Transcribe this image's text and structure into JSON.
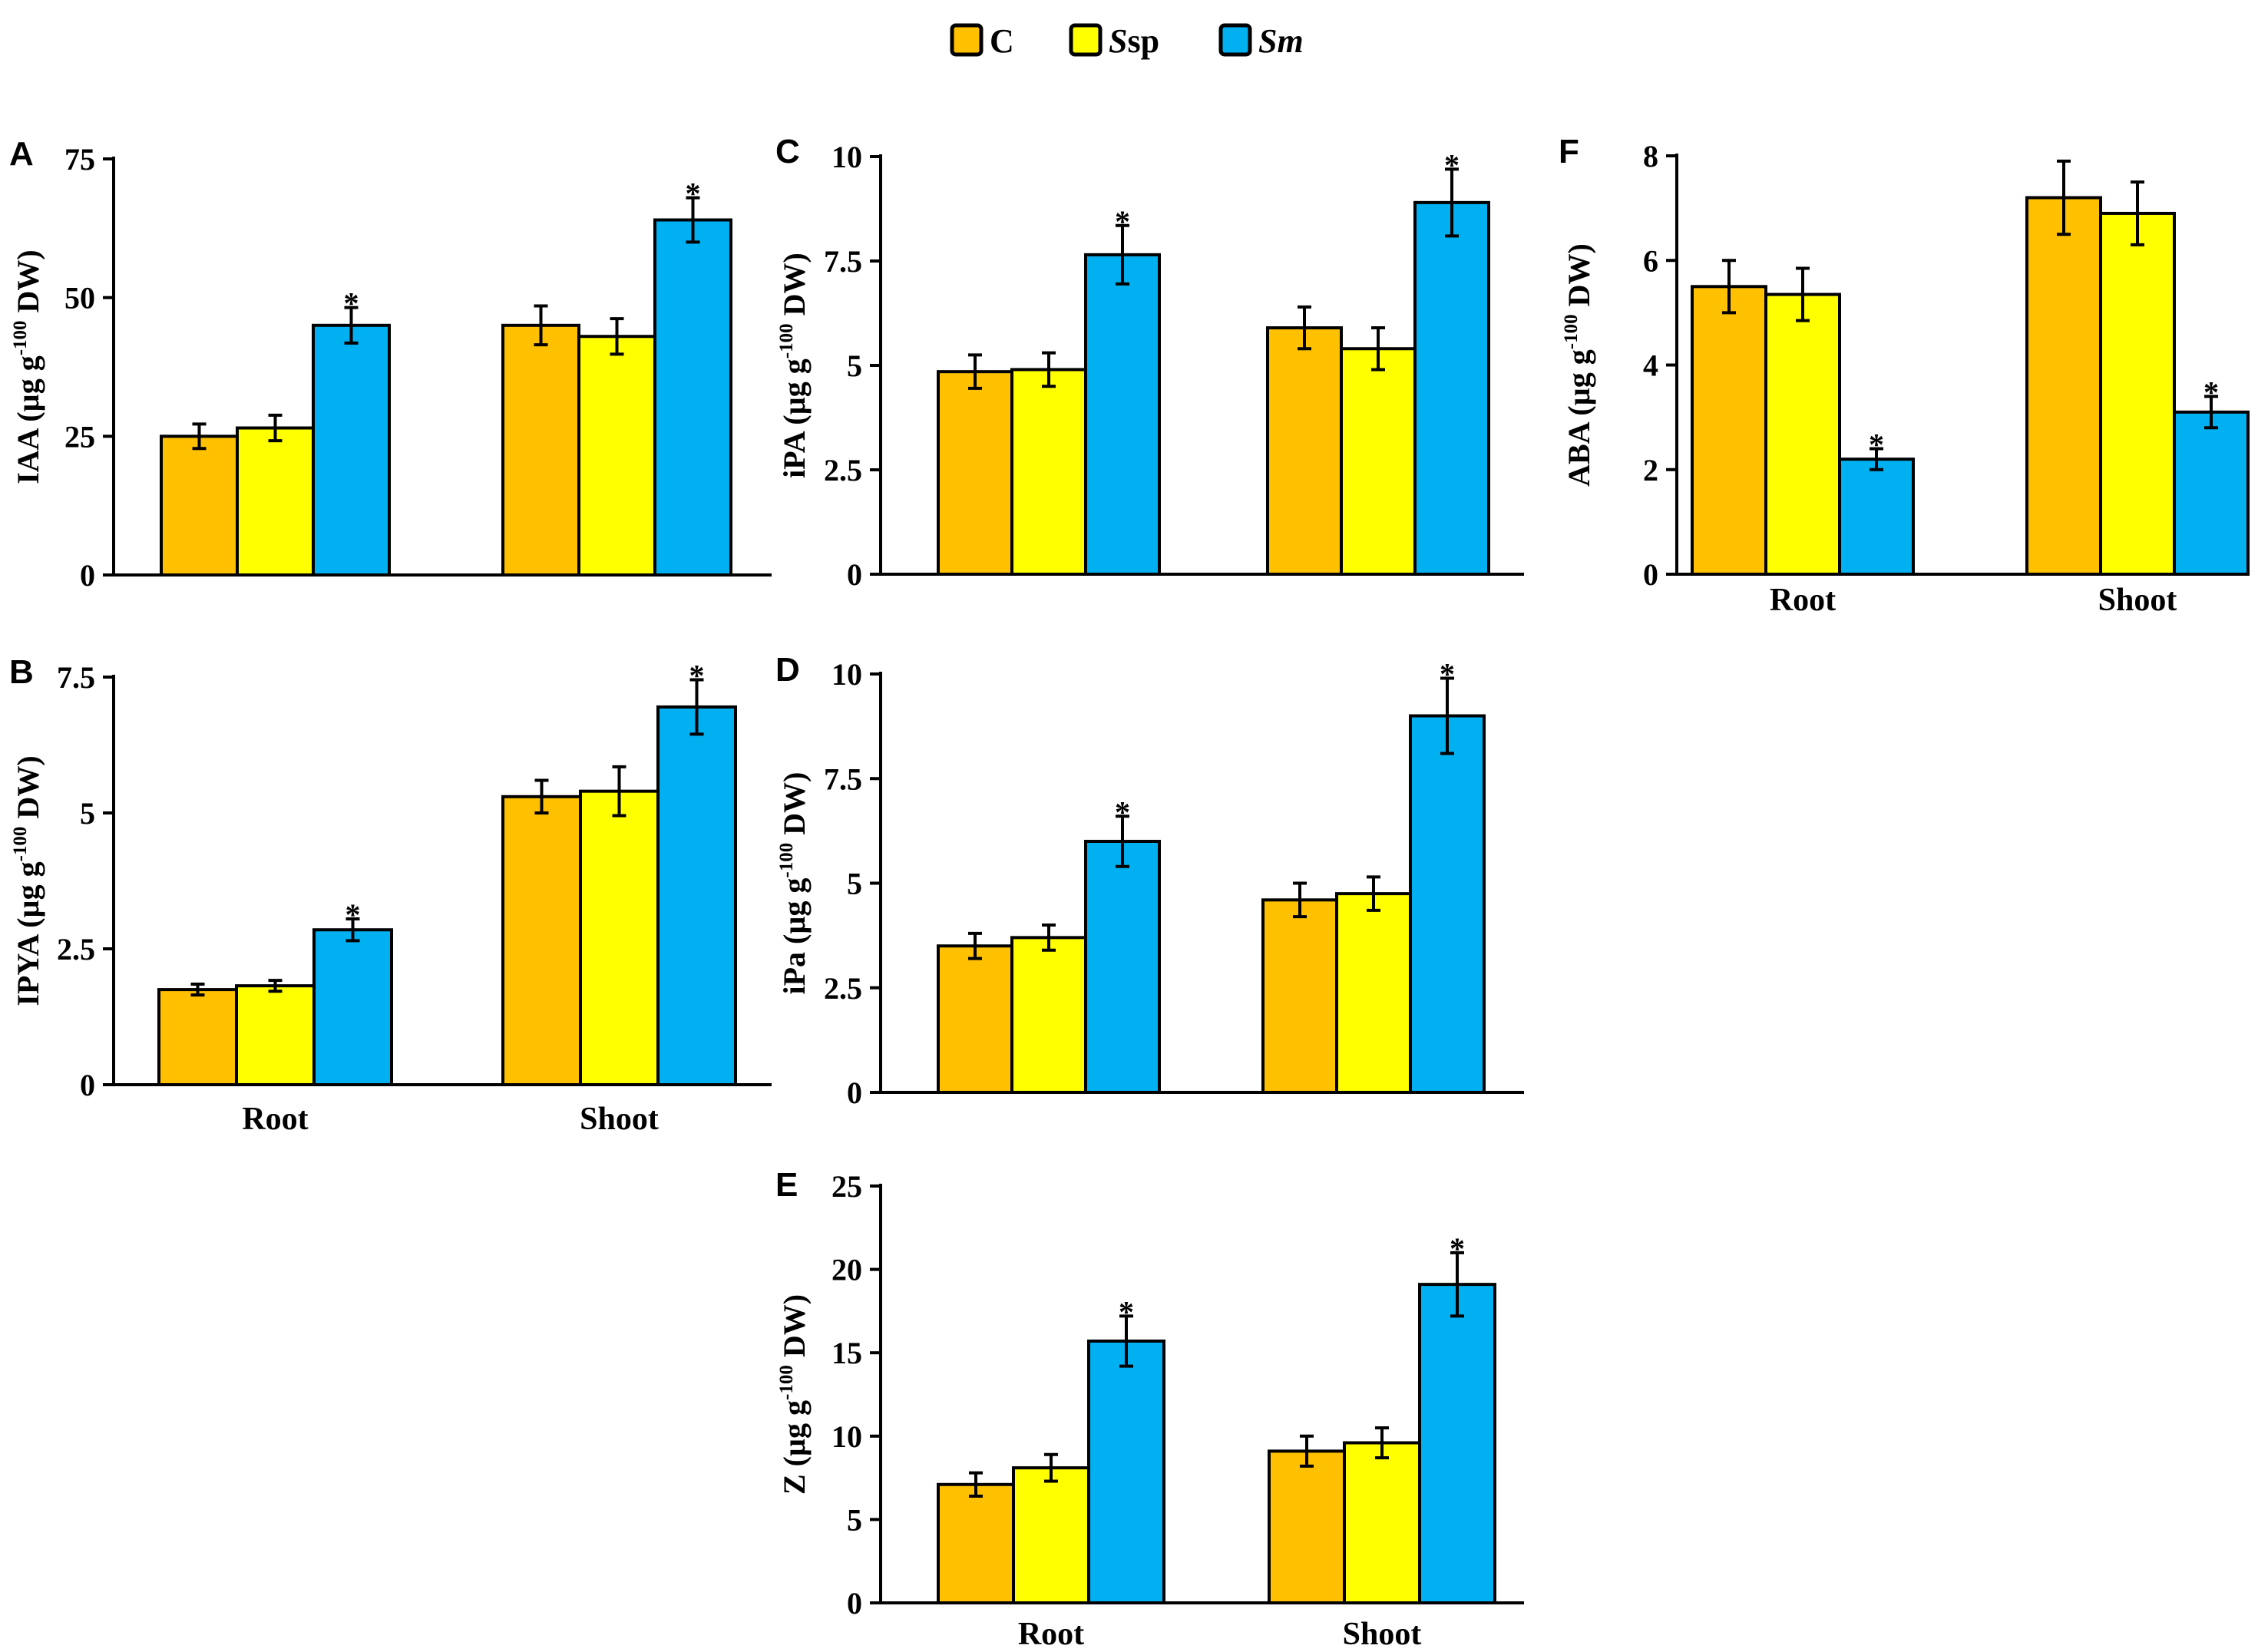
{
  "legend": [
    {
      "key": "C",
      "label_a": "C",
      "label_b": "",
      "italic_a": false,
      "color": "#FFC000"
    },
    {
      "key": "Ssp",
      "label_a": "S",
      "label_b": "sp",
      "italic_a": true,
      "color": "#FFFF00"
    },
    {
      "key": "Sm",
      "label_a": "Sm",
      "label_b": "",
      "italic_a": true,
      "color": "#00B0F0"
    }
  ],
  "colors": {
    "C": "#FFC000",
    "Ssp": "#FFFF00",
    "Sm": "#00B0F0",
    "axis": "#000000",
    "error_bar": "#000000"
  },
  "chart_data": [
    {
      "id": "A",
      "panel_label": "A",
      "type": "bar",
      "ylabel_prefix": "IAA (µg g",
      "ylabel_sup": "-100",
      "ylabel_suffix": " DW)",
      "categories": [
        "Root",
        "Shoot"
      ],
      "show_categories": false,
      "ylim": [
        0,
        75
      ],
      "yticks": [
        0,
        25,
        50,
        75
      ],
      "ytick_labels": [
        "0",
        "25",
        "50",
        "75"
      ],
      "series": [
        {
          "name": "C",
          "values": [
            25,
            45
          ],
          "errors": [
            2.2,
            3.5
          ]
        },
        {
          "name": "Ssp",
          "values": [
            26.5,
            43
          ],
          "errors": [
            2.3,
            3.2
          ]
        },
        {
          "name": "Sm",
          "values": [
            45,
            64
          ],
          "errors": [
            3.2,
            4.0
          ]
        }
      ],
      "significance": [
        {
          "series": "Sm",
          "category": "Root",
          "mark": "*"
        },
        {
          "series": "Sm",
          "category": "Shoot",
          "mark": "*"
        }
      ]
    },
    {
      "id": "B",
      "panel_label": "B",
      "type": "bar",
      "ylabel_prefix": "IPYA (µg g",
      "ylabel_sup": "-100",
      "ylabel_suffix": " DW)",
      "categories": [
        "Root",
        "Shoot"
      ],
      "show_categories": true,
      "ylim": [
        0,
        7.5
      ],
      "yticks": [
        0,
        2.5,
        5,
        7.5
      ],
      "ytick_labels": [
        "0",
        "2.5",
        "5",
        "7.5"
      ],
      "series": [
        {
          "name": "C",
          "values": [
            1.75,
            5.3
          ],
          "errors": [
            0.1,
            0.3
          ]
        },
        {
          "name": "Ssp",
          "values": [
            1.82,
            5.4
          ],
          "errors": [
            0.1,
            0.45
          ]
        },
        {
          "name": "Sm",
          "values": [
            2.85,
            6.95
          ],
          "errors": [
            0.2,
            0.5
          ]
        }
      ],
      "significance": [
        {
          "series": "Sm",
          "category": "Root",
          "mark": "*"
        },
        {
          "series": "Sm",
          "category": "Shoot",
          "mark": "*"
        }
      ]
    },
    {
      "id": "C",
      "panel_label": "C",
      "type": "bar",
      "ylabel_prefix": "iPA (µg g",
      "ylabel_sup": "-100",
      "ylabel_suffix": " DW)",
      "categories": [
        "Root",
        "Shoot"
      ],
      "show_categories": false,
      "ylim": [
        0,
        10
      ],
      "yticks": [
        0,
        2.5,
        5,
        7.5,
        10
      ],
      "ytick_labels": [
        "0",
        "2.5",
        "5",
        "7.5",
        "10"
      ],
      "series": [
        {
          "name": "C",
          "values": [
            4.85,
            5.9
          ],
          "errors": [
            0.4,
            0.5
          ]
        },
        {
          "name": "Ssp",
          "values": [
            4.9,
            5.4
          ],
          "errors": [
            0.4,
            0.5
          ]
        },
        {
          "name": "Sm",
          "values": [
            7.65,
            8.9
          ],
          "errors": [
            0.7,
            0.8
          ]
        }
      ],
      "significance": [
        {
          "series": "Sm",
          "category": "Root",
          "mark": "*"
        },
        {
          "series": "Sm",
          "category": "Shoot",
          "mark": "*"
        }
      ]
    },
    {
      "id": "D",
      "panel_label": "D",
      "type": "bar",
      "ylabel_prefix": "iPa (µg g",
      "ylabel_sup": "-100",
      "ylabel_suffix": " DW)",
      "categories": [
        "Root",
        "Shoot"
      ],
      "show_categories": false,
      "ylim": [
        0,
        10
      ],
      "yticks": [
        0,
        2.5,
        5,
        7.5,
        10
      ],
      "ytick_labels": [
        "0",
        "2.5",
        "5",
        "7.5",
        "10"
      ],
      "series": [
        {
          "name": "C",
          "values": [
            3.5,
            4.6
          ],
          "errors": [
            0.3,
            0.4
          ]
        },
        {
          "name": "Ssp",
          "values": [
            3.7,
            4.75
          ],
          "errors": [
            0.3,
            0.4
          ]
        },
        {
          "name": "Sm",
          "values": [
            6.0,
            9.0
          ],
          "errors": [
            0.6,
            0.9
          ]
        }
      ],
      "significance": [
        {
          "series": "Sm",
          "category": "Root",
          "mark": "*"
        },
        {
          "series": "Sm",
          "category": "Shoot",
          "mark": "*"
        }
      ]
    },
    {
      "id": "E",
      "panel_label": "E",
      "type": "bar",
      "ylabel_prefix": "Z (µg g",
      "ylabel_sup": "-100",
      "ylabel_suffix": " DW)",
      "categories": [
        "Root",
        "Shoot"
      ],
      "show_categories": true,
      "ylim": [
        0,
        25
      ],
      "yticks": [
        0,
        5,
        10,
        15,
        20,
        25
      ],
      "ytick_labels": [
        "0",
        "5",
        "10",
        "15",
        "20",
        "25"
      ],
      "series": [
        {
          "name": "C",
          "values": [
            7.1,
            9.1
          ],
          "errors": [
            0.7,
            0.9
          ]
        },
        {
          "name": "Ssp",
          "values": [
            8.1,
            9.6
          ],
          "errors": [
            0.8,
            0.9
          ]
        },
        {
          "name": "Sm",
          "values": [
            15.7,
            19.1
          ],
          "errors": [
            1.5,
            1.9
          ]
        }
      ],
      "significance": [
        {
          "series": "Sm",
          "category": "Root",
          "mark": "*"
        },
        {
          "series": "Sm",
          "category": "Shoot",
          "mark": "*"
        }
      ]
    },
    {
      "id": "F",
      "panel_label": "F",
      "type": "bar",
      "ylabel_prefix": "ABA (µg g",
      "ylabel_sup": "-100",
      "ylabel_suffix": " DW)",
      "categories": [
        "Root",
        "Shoot"
      ],
      "show_categories": true,
      "ylim": [
        0,
        8
      ],
      "yticks": [
        0,
        2,
        4,
        6,
        8
      ],
      "ytick_labels": [
        "0",
        "2",
        "4",
        "6",
        "8"
      ],
      "series": [
        {
          "name": "C",
          "values": [
            5.5,
            7.2
          ],
          "errors": [
            0.5,
            0.7
          ]
        },
        {
          "name": "Ssp",
          "values": [
            5.35,
            6.9
          ],
          "errors": [
            0.5,
            0.6
          ]
        },
        {
          "name": "Sm",
          "values": [
            2.2,
            3.1
          ],
          "errors": [
            0.2,
            0.3
          ]
        }
      ],
      "significance": [
        {
          "series": "Sm",
          "category": "Root",
          "mark": "*"
        },
        {
          "series": "Sm",
          "category": "Shoot",
          "mark": "*"
        }
      ]
    }
  ]
}
